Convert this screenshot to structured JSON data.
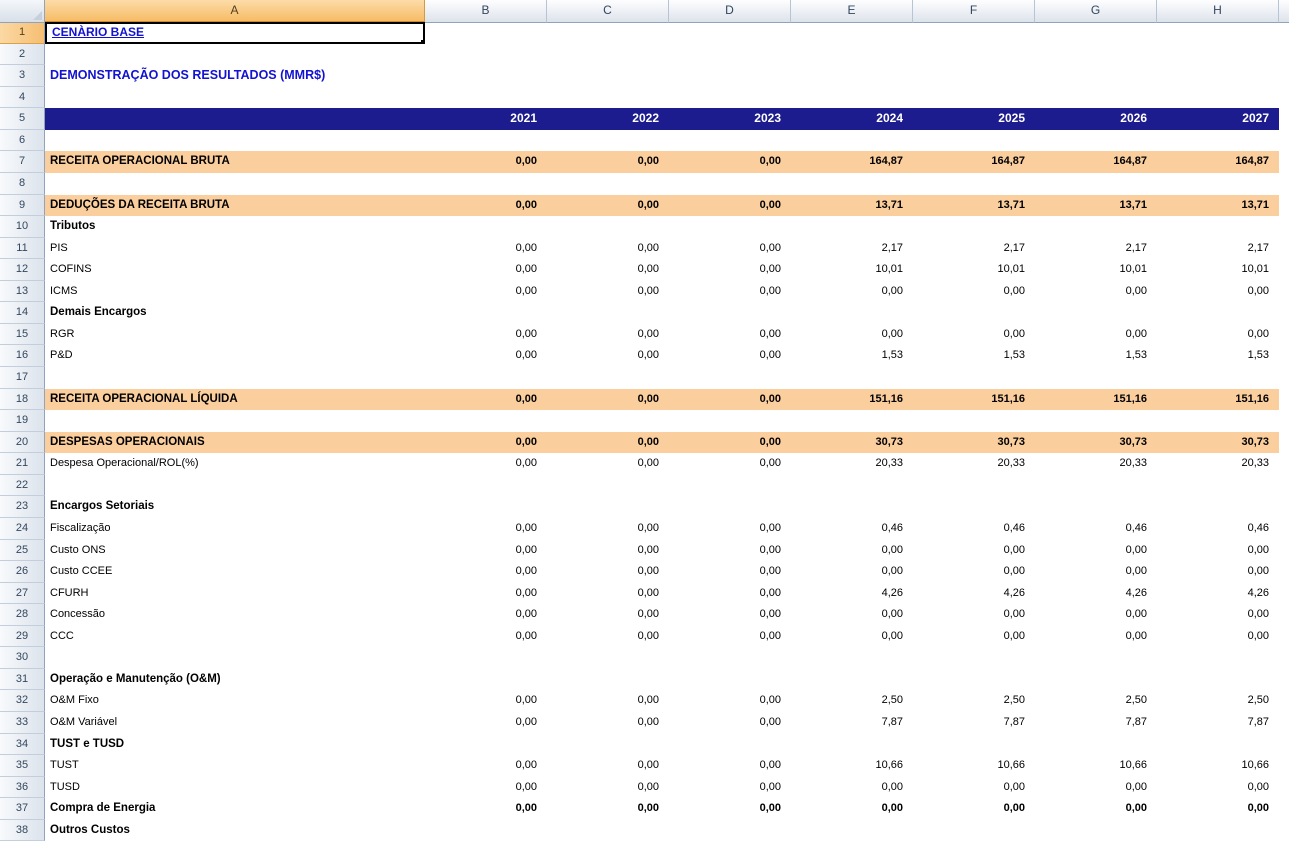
{
  "sheet": {
    "name": "demonstracao-resultados",
    "columns": [
      "A",
      "B",
      "C",
      "D",
      "E",
      "F",
      "G",
      "H"
    ],
    "selection": {
      "cell": "A1",
      "column": "A",
      "row": 1
    },
    "colors": {
      "band_navy": "#1c1c8f",
      "band_orange": "#fbce9e",
      "title_blue": "#1212d0",
      "selected_header_orange": "#f7bc66"
    },
    "rows": [
      {
        "n": 1,
        "kind": "title",
        "label": "CENÀRIO BASE",
        "values": []
      },
      {
        "n": 2,
        "kind": "empty",
        "label": "",
        "values": []
      },
      {
        "n": 3,
        "kind": "heading",
        "label": "DEMONSTRAÇÃO DOS RESULTADOS (MMR$)",
        "values": []
      },
      {
        "n": 4,
        "kind": "empty",
        "label": "",
        "values": []
      },
      {
        "n": 5,
        "kind": "years",
        "label": "",
        "values": [
          "2021",
          "2022",
          "2023",
          "2024",
          "2025",
          "2026",
          "2027"
        ]
      },
      {
        "n": 6,
        "kind": "empty",
        "label": "",
        "values": []
      },
      {
        "n": 7,
        "kind": "section",
        "label": "RECEITA OPERACIONAL BRUTA",
        "values": [
          "0,00",
          "0,00",
          "0,00",
          "164,87",
          "164,87",
          "164,87",
          "164,87"
        ]
      },
      {
        "n": 8,
        "kind": "empty",
        "label": "",
        "values": []
      },
      {
        "n": 9,
        "kind": "section",
        "label": "DEDUÇÕES DA RECEITA BRUTA",
        "values": [
          "0,00",
          "0,00",
          "0,00",
          "13,71",
          "13,71",
          "13,71",
          "13,71"
        ]
      },
      {
        "n": 10,
        "kind": "group",
        "label": "Tributos",
        "values": []
      },
      {
        "n": 11,
        "kind": "item",
        "label": "PIS",
        "values": [
          "0,00",
          "0,00",
          "0,00",
          "2,17",
          "2,17",
          "2,17",
          "2,17"
        ]
      },
      {
        "n": 12,
        "kind": "item",
        "label": "COFINS",
        "values": [
          "0,00",
          "0,00",
          "0,00",
          "10,01",
          "10,01",
          "10,01",
          "10,01"
        ]
      },
      {
        "n": 13,
        "kind": "item",
        "label": "ICMS",
        "values": [
          "0,00",
          "0,00",
          "0,00",
          "0,00",
          "0,00",
          "0,00",
          "0,00"
        ]
      },
      {
        "n": 14,
        "kind": "group",
        "label": "Demais Encargos",
        "values": []
      },
      {
        "n": 15,
        "kind": "item",
        "label": "RGR",
        "values": [
          "0,00",
          "0,00",
          "0,00",
          "0,00",
          "0,00",
          "0,00",
          "0,00"
        ]
      },
      {
        "n": 16,
        "kind": "item",
        "label": "P&D",
        "values": [
          "0,00",
          "0,00",
          "0,00",
          "1,53",
          "1,53",
          "1,53",
          "1,53"
        ]
      },
      {
        "n": 17,
        "kind": "empty",
        "label": "",
        "values": []
      },
      {
        "n": 18,
        "kind": "section",
        "label": "RECEITA OPERACIONAL LÍQUIDA",
        "values": [
          "0,00",
          "0,00",
          "0,00",
          "151,16",
          "151,16",
          "151,16",
          "151,16"
        ]
      },
      {
        "n": 19,
        "kind": "empty",
        "label": "",
        "values": []
      },
      {
        "n": 20,
        "kind": "section",
        "label": "DESPESAS OPERACIONAIS",
        "values": [
          "0,00",
          "0,00",
          "0,00",
          "30,73",
          "30,73",
          "30,73",
          "30,73"
        ]
      },
      {
        "n": 21,
        "kind": "item",
        "label": "Despesa Operacional/ROL(%)",
        "values": [
          "0,00",
          "0,00",
          "0,00",
          "20,33",
          "20,33",
          "20,33",
          "20,33"
        ]
      },
      {
        "n": 22,
        "kind": "empty",
        "label": "",
        "values": []
      },
      {
        "n": 23,
        "kind": "group",
        "label": "Encargos Setoriais",
        "values": []
      },
      {
        "n": 24,
        "kind": "item",
        "label": "Fiscalização",
        "values": [
          "0,00",
          "0,00",
          "0,00",
          "0,46",
          "0,46",
          "0,46",
          "0,46"
        ]
      },
      {
        "n": 25,
        "kind": "item",
        "label": "Custo ONS",
        "values": [
          "0,00",
          "0,00",
          "0,00",
          "0,00",
          "0,00",
          "0,00",
          "0,00"
        ]
      },
      {
        "n": 26,
        "kind": "item",
        "label": "Custo CCEE",
        "values": [
          "0,00",
          "0,00",
          "0,00",
          "0,00",
          "0,00",
          "0,00",
          "0,00"
        ]
      },
      {
        "n": 27,
        "kind": "item",
        "label": "CFURH",
        "values": [
          "0,00",
          "0,00",
          "0,00",
          "4,26",
          "4,26",
          "4,26",
          "4,26"
        ]
      },
      {
        "n": 28,
        "kind": "item",
        "label": "Concessão",
        "values": [
          "0,00",
          "0,00",
          "0,00",
          "0,00",
          "0,00",
          "0,00",
          "0,00"
        ]
      },
      {
        "n": 29,
        "kind": "item",
        "label": "CCC",
        "values": [
          "0,00",
          "0,00",
          "0,00",
          "0,00",
          "0,00",
          "0,00",
          "0,00"
        ]
      },
      {
        "n": 30,
        "kind": "empty",
        "label": "",
        "values": []
      },
      {
        "n": 31,
        "kind": "group",
        "label": "Operação e Manutenção (O&M)",
        "values": []
      },
      {
        "n": 32,
        "kind": "item",
        "label": "O&M Fixo",
        "values": [
          "0,00",
          "0,00",
          "0,00",
          "2,50",
          "2,50",
          "2,50",
          "2,50"
        ]
      },
      {
        "n": 33,
        "kind": "item",
        "label": "O&M Variável",
        "values": [
          "0,00",
          "0,00",
          "0,00",
          "7,87",
          "7,87",
          "7,87",
          "7,87"
        ]
      },
      {
        "n": 34,
        "kind": "group",
        "label": "TUST e TUSD",
        "values": []
      },
      {
        "n": 35,
        "kind": "item",
        "label": "TUST",
        "values": [
          "0,00",
          "0,00",
          "0,00",
          "10,66",
          "10,66",
          "10,66",
          "10,66"
        ]
      },
      {
        "n": 36,
        "kind": "item",
        "label": "TUSD",
        "values": [
          "0,00",
          "0,00",
          "0,00",
          "0,00",
          "0,00",
          "0,00",
          "0,00"
        ]
      },
      {
        "n": 37,
        "kind": "boldrow",
        "label": "Compra de Energia",
        "values": [
          "0,00",
          "0,00",
          "0,00",
          "0,00",
          "0,00",
          "0,00",
          "0,00"
        ]
      },
      {
        "n": 38,
        "kind": "group",
        "label": "Outros Custos",
        "values": []
      }
    ]
  }
}
